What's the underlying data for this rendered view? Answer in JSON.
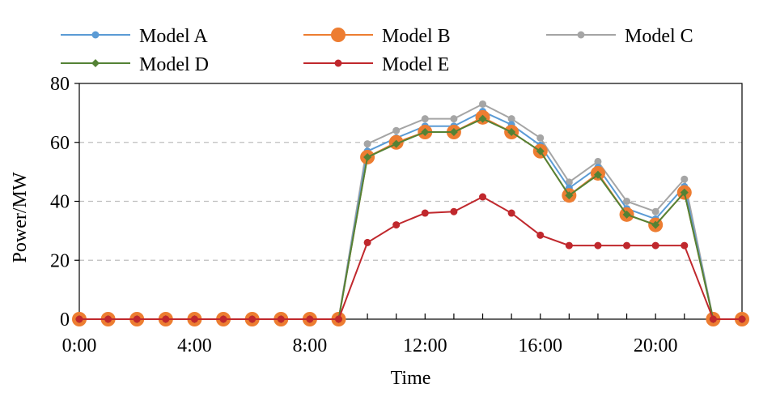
{
  "chart_data": {
    "type": "line",
    "title": "",
    "xlabel": "Time",
    "ylabel": "Power/MW",
    "x": [
      0,
      1,
      2,
      3,
      4,
      5,
      6,
      7,
      8,
      9,
      10,
      11,
      12,
      13,
      14,
      15,
      16,
      17,
      18,
      19,
      20,
      21,
      22,
      23
    ],
    "xlim": [
      0,
      23
    ],
    "ylim": [
      0,
      80
    ],
    "x_ticks": [
      {
        "value": 0,
        "label": "0:00"
      },
      {
        "value": 4,
        "label": "4:00"
      },
      {
        "value": 8,
        "label": "8:00"
      },
      {
        "value": 12,
        "label": "12:00"
      },
      {
        "value": 16,
        "label": "16:00"
      },
      {
        "value": 20,
        "label": "20:00"
      }
    ],
    "y_ticks": [
      {
        "value": 0,
        "label": "0"
      },
      {
        "value": 20,
        "label": "20"
      },
      {
        "value": 40,
        "label": "40"
      },
      {
        "value": 60,
        "label": "60"
      },
      {
        "value": 80,
        "label": "80"
      }
    ],
    "grid": "y-dashed",
    "legend_position": "top",
    "series": [
      {
        "name": "Model A",
        "color": "#5b9bd5",
        "marker": "circle-small",
        "values": [
          0,
          0,
          0,
          0,
          0,
          0,
          0,
          0,
          0,
          0,
          57,
          61.5,
          65.5,
          65.5,
          70.5,
          66,
          59,
          44.5,
          51.5,
          37.5,
          34,
          45,
          0,
          0
        ]
      },
      {
        "name": "Model B",
        "color": "#ed7d31",
        "marker": "circle-large",
        "values": [
          0,
          0,
          0,
          0,
          0,
          0,
          0,
          0,
          0,
          0,
          55,
          60,
          63.5,
          63.5,
          68.5,
          63.5,
          57,
          42,
          49.5,
          35.5,
          32,
          43,
          0,
          0
        ]
      },
      {
        "name": "Model C",
        "color": "#a5a5a5",
        "marker": "circle-small",
        "values": [
          0,
          0,
          0,
          0,
          0,
          0,
          0,
          0,
          0,
          0,
          59.5,
          64,
          68,
          68,
          73,
          68,
          61.5,
          46.5,
          53.5,
          40,
          36.5,
          47.5,
          0,
          0
        ]
      },
      {
        "name": "Model D",
        "color": "#548235",
        "marker": "diamond",
        "values": [
          0,
          0,
          0,
          0,
          0,
          0,
          0,
          0,
          0,
          0,
          55,
          59.5,
          63.5,
          63.5,
          68,
          63.5,
          57,
          42,
          49,
          35.5,
          32,
          43,
          0,
          0
        ]
      },
      {
        "name": "Model E",
        "color": "#c0282d",
        "marker": "circle-small",
        "values": [
          0,
          0,
          0,
          0,
          0,
          0,
          0,
          0,
          0,
          0,
          26,
          32,
          36,
          36.5,
          41.5,
          36,
          28.5,
          25,
          25,
          25,
          25,
          25,
          0,
          0
        ]
      }
    ]
  }
}
